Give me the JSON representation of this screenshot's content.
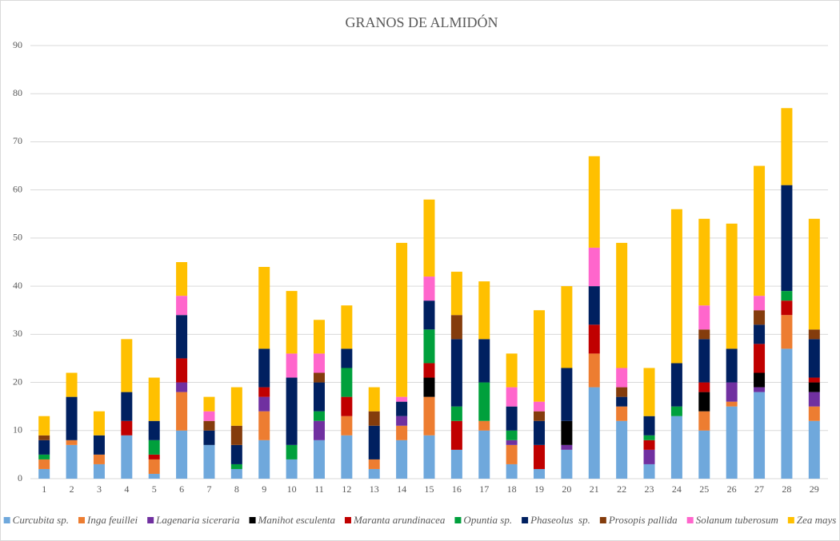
{
  "chart_data": {
    "type": "stacked_bar",
    "title": "GRANOS DE ALMIDÓN",
    "categories": [
      "1",
      "2",
      "3",
      "4",
      "5",
      "6",
      "7",
      "8",
      "9",
      "10",
      "11",
      "12",
      "13",
      "14",
      "15",
      "16",
      "17",
      "18",
      "19",
      "20",
      "21",
      "22",
      "23",
      "24",
      "25",
      "26",
      "27",
      "28",
      "29"
    ],
    "series": [
      {
        "name": "Curcubita sp.",
        "color": "#6fa8dc",
        "values": [
          2,
          7,
          3,
          9,
          1,
          10,
          7,
          2,
          8,
          4,
          8,
          9,
          2,
          8,
          9,
          6,
          10,
          3,
          2,
          6,
          19,
          12,
          3,
          13,
          10,
          15,
          18,
          27,
          12
        ]
      },
      {
        "name": "Inga feuillei",
        "color": "#ed7d31",
        "values": [
          2,
          1,
          2,
          0,
          3,
          8,
          0,
          0,
          6,
          0,
          0,
          4,
          2,
          3,
          8,
          0,
          2,
          4,
          0,
          0,
          7,
          3,
          0,
          0,
          4,
          1,
          0,
          7,
          3
        ]
      },
      {
        "name": "Lagenaria siceraria",
        "color": "#7030a0",
        "values": [
          0,
          0,
          0,
          0,
          0,
          2,
          0,
          0,
          3,
          0,
          4,
          0,
          0,
          2,
          0,
          0,
          0,
          1,
          0,
          1,
          0,
          0,
          3,
          0,
          0,
          4,
          1,
          0,
          3
        ]
      },
      {
        "name": "Manihot esculenta",
        "color": "#000000",
        "values": [
          0,
          0,
          0,
          0,
          0,
          0,
          0,
          0,
          0,
          0,
          0,
          0,
          0,
          0,
          4,
          0,
          0,
          0,
          0,
          5,
          0,
          0,
          0,
          0,
          4,
          0,
          3,
          0,
          2
        ]
      },
      {
        "name": "Maranta arundinacea",
        "color": "#c00000",
        "values": [
          0,
          0,
          0,
          3,
          1,
          5,
          0,
          0,
          2,
          0,
          0,
          4,
          0,
          0,
          3,
          6,
          0,
          0,
          5,
          0,
          6,
          0,
          2,
          0,
          2,
          0,
          6,
          3,
          1
        ]
      },
      {
        "name": "Opuntia sp.",
        "color": "#00a03c",
        "values": [
          1,
          0,
          0,
          0,
          3,
          0,
          0,
          1,
          0,
          3,
          2,
          6,
          0,
          0,
          7,
          3,
          8,
          2,
          0,
          0,
          0,
          0,
          1,
          2,
          0,
          0,
          0,
          2,
          0
        ]
      },
      {
        "name": "Phaseolus  sp.",
        "color": "#002060",
        "values": [
          3,
          9,
          4,
          6,
          4,
          9,
          3,
          4,
          8,
          14,
          6,
          4,
          7,
          3,
          6,
          14,
          9,
          5,
          5,
          11,
          8,
          2,
          4,
          9,
          9,
          7,
          4,
          22,
          8
        ]
      },
      {
        "name": "Prosopis pallida",
        "color": "#843c0c",
        "values": [
          1,
          0,
          0,
          0,
          0,
          0,
          2,
          4,
          0,
          0,
          2,
          0,
          3,
          0,
          0,
          5,
          0,
          0,
          2,
          0,
          0,
          2,
          0,
          0,
          2,
          0,
          3,
          0,
          2
        ]
      },
      {
        "name": "Solanum tuberosum",
        "color": "#ff66cc",
        "values": [
          0,
          0,
          0,
          0,
          0,
          4,
          2,
          0,
          0,
          5,
          4,
          0,
          0,
          1,
          5,
          0,
          0,
          4,
          2,
          0,
          8,
          4,
          0,
          0,
          5,
          0,
          3,
          0,
          0
        ]
      },
      {
        "name": "Zea mays",
        "color": "#ffc000",
        "values": [
          4,
          5,
          5,
          11,
          9,
          7,
          3,
          8,
          17,
          13,
          7,
          9,
          5,
          32,
          16,
          9,
          12,
          7,
          19,
          17,
          19,
          26,
          10,
          32,
          18,
          26,
          27,
          16,
          23
        ]
      }
    ],
    "ylim": [
      0,
      90
    ],
    "yticks": [
      0,
      10,
      20,
      30,
      40,
      50,
      60,
      70,
      80,
      90
    ],
    "grid": true,
    "legend": "bottom"
  }
}
